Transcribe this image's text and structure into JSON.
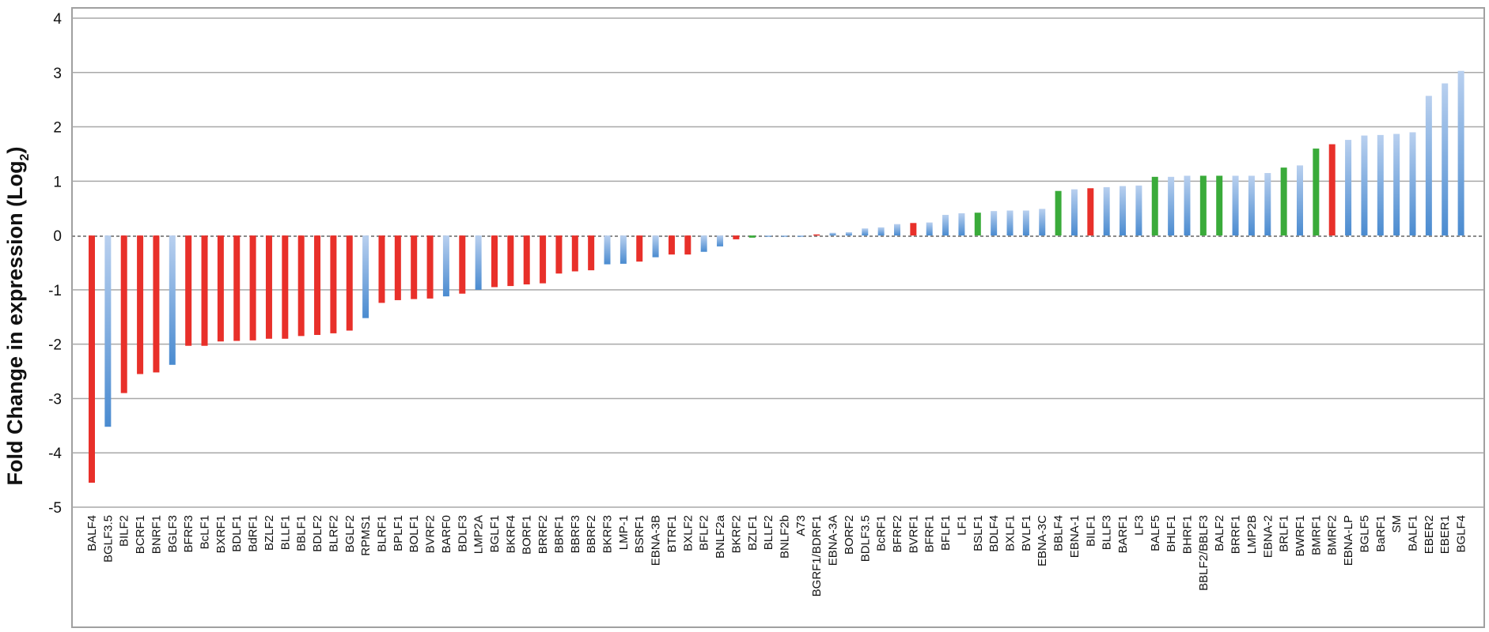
{
  "chart_data": {
    "type": "bar",
    "ylabel": {
      "text": "Fold Change in expression (Log",
      "subscript": "2",
      "suffix": ")"
    },
    "ylim": [
      -5,
      4
    ],
    "yticks": [
      4,
      3,
      2,
      1,
      0,
      -1,
      -2,
      -3,
      -4,
      -5
    ],
    "grid": true,
    "colors": {
      "red": "#e8302a",
      "green": "#3aab3a",
      "blue_dark": "#4a8bd0",
      "blue_light": "#b9d0ef"
    },
    "categories": [
      "BALF4",
      "BGLF3.5",
      "BILF2",
      "BCRF1",
      "BNRF1",
      "BGLF3",
      "BFRF3",
      "BcLF1",
      "BXRF1",
      "BDLF1",
      "BdRF1",
      "BZLF2",
      "BLLF1",
      "BBLF1",
      "BDLF2",
      "BLRF2",
      "BGLF2",
      "RPMS1",
      "BLRF1",
      "BPLF1",
      "BOLF1",
      "BVRF2",
      "BARF0",
      "BDLF3",
      "LMP2A",
      "BGLF1",
      "BKRF4",
      "BORF1",
      "BRRF2",
      "BBRF1",
      "BBRF3",
      "BBRF2",
      "BKRF3",
      "LMP-1",
      "BSRF1",
      "EBNA-3B",
      "BTRF1",
      "BXLF2",
      "BFLF2",
      "BNLF2a",
      "BKRF2",
      "BZLF1",
      "BLLF2",
      "BNLF2b",
      "A73",
      "BGRF1/BDRF1",
      "EBNA-3A",
      "BORF2",
      "BDLF3.5",
      "BcRF1",
      "BFRF2",
      "BVRF1",
      "BFRF1",
      "BFLF1",
      "LF1",
      "BSLF1",
      "BDLF4",
      "BXLF1",
      "BVLF1",
      "EBNA-3C",
      "BBLF4",
      "EBNA-1",
      "BILF1",
      "BLLF3",
      "BARF1",
      "LF3",
      "BALF5",
      "BHLF1",
      "BHRF1",
      "BBLF2/BBLF3",
      "BALF2",
      "BRRF1",
      "LMP2B",
      "EBNA-2",
      "BRLF1",
      "BWRF1",
      "BMRF1",
      "BMRF2",
      "EBNA-LP",
      "BGLF5",
      "BaRF1",
      "SM",
      "BALF1",
      "EBER2",
      "EBER1",
      "BGLF4"
    ],
    "values": [
      -4.55,
      -3.52,
      -2.9,
      -2.55,
      -2.52,
      -2.38,
      -2.03,
      -2.03,
      -1.95,
      -1.94,
      -1.93,
      -1.9,
      -1.9,
      -1.85,
      -1.83,
      -1.8,
      -1.75,
      -1.52,
      -1.24,
      -1.19,
      -1.17,
      -1.16,
      -1.12,
      -1.07,
      -1.0,
      -0.95,
      -0.93,
      -0.9,
      -0.88,
      -0.7,
      -0.66,
      -0.64,
      -0.53,
      -0.52,
      -0.48,
      -0.4,
      -0.35,
      -0.35,
      -0.3,
      -0.2,
      -0.07,
      -0.04,
      -0.02,
      -0.01,
      0.0,
      0.02,
      0.05,
      0.06,
      0.13,
      0.15,
      0.21,
      0.23,
      0.24,
      0.38,
      0.41,
      0.42,
      0.45,
      0.46,
      0.46,
      0.49,
      0.82,
      0.85,
      0.87,
      0.89,
      0.91,
      0.92,
      1.08,
      1.08,
      1.1,
      1.1,
      1.1,
      1.1,
      1.1,
      1.15,
      1.25,
      1.29,
      1.6,
      1.68,
      1.76,
      1.84,
      1.85,
      1.87,
      1.9,
      2.57,
      2.8,
      3.03
    ],
    "bar_colors": [
      "red",
      "blue",
      "red",
      "red",
      "red",
      "blue",
      "red",
      "red",
      "red",
      "red",
      "red",
      "red",
      "red",
      "red",
      "red",
      "red",
      "red",
      "blue",
      "red",
      "red",
      "red",
      "red",
      "blue",
      "red",
      "blue",
      "red",
      "red",
      "red",
      "red",
      "red",
      "red",
      "red",
      "blue",
      "blue",
      "red",
      "blue",
      "red",
      "red",
      "blue",
      "blue",
      "red",
      "green",
      "blue",
      "blue",
      "blue",
      "red",
      "blue",
      "blue",
      "blue",
      "blue",
      "blue",
      "red",
      "blue",
      "blue",
      "blue",
      "green",
      "blue",
      "blue",
      "blue",
      "blue",
      "green",
      "blue",
      "red",
      "blue",
      "blue",
      "blue",
      "green",
      "blue",
      "blue",
      "green",
      "green",
      "blue",
      "blue",
      "blue",
      "green",
      "blue",
      "green",
      "red",
      "blue",
      "blue",
      "blue",
      "blue",
      "blue",
      "blue",
      "blue",
      "blue"
    ]
  }
}
